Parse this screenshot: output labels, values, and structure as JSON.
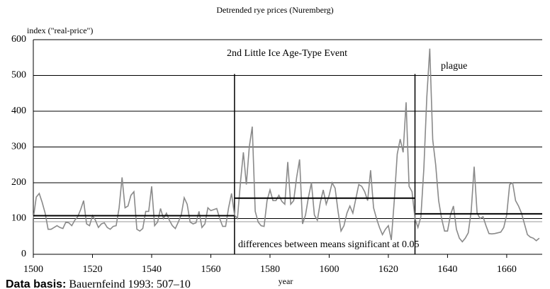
{
  "chart_data": {
    "type": "line",
    "title": "Detrended rye prices (Nuremberg)",
    "y_label": "index (\"real-price\")",
    "x_label": "year",
    "source_label": "Data basis:",
    "source": "Bauernfeind 1993: 507–10",
    "annotations": [
      "2nd Little Ice Age-Type Event",
      "plague",
      "differences between means significant at 0.05"
    ],
    "color": "#8a8a8a",
    "x": [
      1500,
      1501,
      1502,
      1503,
      1504,
      1505,
      1506,
      1507,
      1508,
      1509,
      1510,
      1511,
      1512,
      1513,
      1514,
      1515,
      1516,
      1517,
      1518,
      1519,
      1520,
      1521,
      1522,
      1523,
      1524,
      1525,
      1526,
      1527,
      1528,
      1529,
      1530,
      1531,
      1532,
      1533,
      1534,
      1535,
      1536,
      1537,
      1538,
      1539,
      1540,
      1541,
      1542,
      1543,
      1544,
      1545,
      1546,
      1547,
      1548,
      1549,
      1550,
      1551,
      1552,
      1553,
      1554,
      1555,
      1556,
      1557,
      1558,
      1559,
      1560,
      1561,
      1562,
      1563,
      1564,
      1565,
      1566,
      1567,
      1568,
      1569,
      1570,
      1571,
      1572,
      1573,
      1574,
      1575,
      1576,
      1577,
      1578,
      1579,
      1580,
      1581,
      1582,
      1583,
      1584,
      1585,
      1586,
      1587,
      1588,
      1589,
      1590,
      1591,
      1592,
      1593,
      1594,
      1595,
      1596,
      1597,
      1598,
      1599,
      1600,
      1601,
      1602,
      1603,
      1604,
      1605,
      1606,
      1607,
      1608,
      1609,
      1610,
      1611,
      1612,
      1613,
      1614,
      1615,
      1616,
      1617,
      1618,
      1619,
      1620,
      1621,
      1622,
      1623,
      1624,
      1625,
      1626,
      1627,
      1628,
      1629,
      1630,
      1631,
      1632,
      1633,
      1634,
      1635,
      1636,
      1637,
      1638,
      1639,
      1640,
      1641,
      1642,
      1643,
      1644,
      1645,
      1646,
      1647,
      1648,
      1649,
      1650,
      1651,
      1652,
      1653,
      1654,
      1655,
      1656,
      1657,
      1658,
      1659,
      1660,
      1661,
      1662,
      1663,
      1664,
      1665,
      1666,
      1667,
      1668,
      1669,
      1670,
      1671
    ],
    "values": [
      100,
      160,
      170,
      145,
      115,
      70,
      70,
      75,
      80,
      75,
      72,
      90,
      88,
      80,
      95,
      105,
      125,
      150,
      85,
      80,
      108,
      95,
      75,
      85,
      88,
      75,
      70,
      78,
      80,
      130,
      215,
      130,
      135,
      165,
      175,
      70,
      65,
      72,
      120,
      120,
      190,
      80,
      90,
      128,
      100,
      115,
      95,
      80,
      72,
      90,
      110,
      158,
      140,
      90,
      85,
      88,
      120,
      75,
      85,
      130,
      122,
      125,
      128,
      100,
      78,
      78,
      130,
      170,
      110,
      100,
      200,
      285,
      195,
      300,
      357,
      120,
      90,
      80,
      78,
      150,
      180,
      150,
      150,
      165,
      148,
      140,
      258,
      140,
      150,
      215,
      265,
      85,
      110,
      160,
      200,
      110,
      95,
      145,
      180,
      140,
      165,
      200,
      185,
      120,
      65,
      80,
      115,
      135,
      115,
      155,
      195,
      190,
      175,
      150,
      235,
      130,
      100,
      75,
      55,
      70,
      80,
      40,
      150,
      280,
      322,
      285,
      425,
      190,
      175,
      100,
      75,
      105,
      240,
      440,
      575,
      320,
      250,
      150,
      100,
      65,
      65,
      110,
      135,
      70,
      45,
      35,
      45,
      60,
      120,
      245,
      115,
      100,
      105,
      80,
      58,
      57,
      58,
      60,
      62,
      75,
      110,
      195,
      200,
      150,
      135,
      115,
      85,
      55,
      48,
      45,
      38,
      45
    ],
    "mean_segments": [
      {
        "from": 1500,
        "to": 1568,
        "value": 108
      },
      {
        "from": 1568,
        "to": 1629,
        "value": 157
      },
      {
        "from": 1629,
        "to": 1672,
        "value": 113
      }
    ],
    "event_lines": [
      1568,
      1629
    ],
    "reference_line": 91,
    "xlim": [
      1500,
      1672
    ],
    "ylim": [
      0,
      600
    ],
    "xticks": [
      1500,
      1520,
      1540,
      1560,
      1580,
      1600,
      1620,
      1640,
      1660
    ],
    "yticks": [
      0,
      100,
      200,
      300,
      400,
      500,
      600
    ],
    "grid": true
  }
}
